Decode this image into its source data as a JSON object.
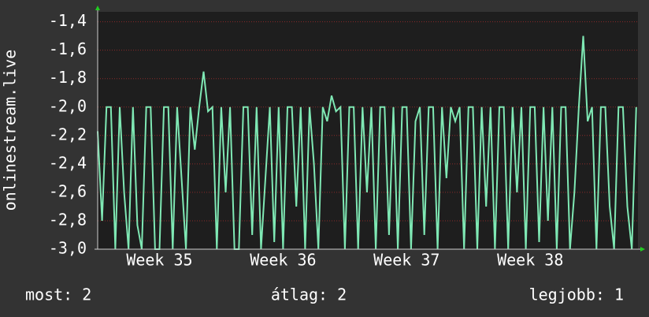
{
  "chart_data": {
    "type": "line",
    "y_label": "onlinestream.live",
    "x": [
      0,
      0.25,
      0.5,
      0.75,
      1,
      1.25,
      1.5,
      1.75,
      2,
      2.25,
      2.5,
      2.75,
      3,
      3.25,
      3.5,
      3.75,
      4,
      4.25,
      4.5,
      4.75,
      5,
      5.25,
      5.5,
      5.75,
      6,
      6.25,
      6.5,
      6.75,
      7,
      7.25,
      7.5,
      7.75,
      8,
      8.25,
      8.5,
      8.75,
      9,
      9.25,
      9.5,
      9.75,
      10,
      10.25,
      10.5,
      10.75,
      11,
      11.25,
      11.5,
      11.75,
      12,
      12.25,
      12.5,
      12.75,
      13,
      13.25,
      13.5,
      13.75,
      14,
      14.25,
      14.5,
      14.75,
      15,
      15.25,
      15.5,
      15.75,
      16,
      16.25,
      16.5,
      16.75,
      17,
      17.25,
      17.5,
      17.75,
      18,
      18.25,
      18.5,
      18.75,
      19,
      19.25,
      19.5,
      19.75,
      20,
      20.25,
      20.5,
      20.75,
      21,
      21.25,
      21.5,
      21.75,
      22,
      22.25,
      22.5,
      22.75,
      23,
      23.25,
      23.5,
      23.75,
      24,
      24.25,
      24.5,
      24.75,
      25,
      25.25,
      25.5,
      25.75,
      26,
      26.25,
      26.5,
      26.75,
      27,
      27.25,
      27.5,
      27.75,
      28,
      28.25,
      28.5,
      28.75,
      29,
      29.25,
      29.5,
      29.75,
      30,
      30.25,
      30.5
    ],
    "series": [
      {
        "color": "#7fe8b4",
        "values": [
          -2.17,
          -2.8,
          -2.0,
          -2.0,
          -3.0,
          -2.0,
          -2.6,
          -3.0,
          -2.0,
          -2.83,
          -3.0,
          -2.0,
          -2.0,
          -3.0,
          -3.0,
          -2.0,
          -2.0,
          -3.0,
          -2.0,
          -2.5,
          -3.0,
          -2.0,
          -2.3,
          -2.0,
          -1.75,
          -2.03,
          -2.0,
          -3.0,
          -2.0,
          -2.6,
          -2.0,
          -3.0,
          -3.0,
          -2.0,
          -2.0,
          -2.9,
          -2.0,
          -3.0,
          -2.5,
          -2.0,
          -2.95,
          -2.0,
          -3.0,
          -2.0,
          -2.0,
          -2.7,
          -2.0,
          -3.0,
          -2.0,
          -2.4,
          -3.0,
          -2.0,
          -2.1,
          -1.92,
          -2.03,
          -2.0,
          -3.0,
          -2.0,
          -2.0,
          -3.0,
          -2.0,
          -2.6,
          -2.0,
          -3.0,
          -2.0,
          -2.0,
          -2.9,
          -2.0,
          -3.0,
          -2.0,
          -2.0,
          -3.0,
          -2.1,
          -2.0,
          -2.9,
          -2.0,
          -2.0,
          -3.0,
          -2.0,
          -2.5,
          -2.0,
          -2.1,
          -2.0,
          -3.0,
          -2.0,
          -2.0,
          -3.0,
          -2.0,
          -2.7,
          -2.0,
          -3.0,
          -2.0,
          -2.0,
          -3.0,
          -2.0,
          -2.6,
          -2.0,
          -3.0,
          -2.0,
          -2.0,
          -2.95,
          -2.0,
          -2.8,
          -2.0,
          -3.0,
          -2.0,
          -2.0,
          -3.0,
          -2.6,
          -2.0,
          -1.5,
          -2.1,
          -2.0,
          -3.0,
          -2.0,
          -2.0,
          -2.7,
          -3.0,
          -2.0,
          -2.0,
          -2.7,
          -3.0,
          -2.0
        ]
      }
    ],
    "xlim": [
      0,
      30.6
    ],
    "xticks": [
      {
        "value": 3.5,
        "label": "Week 35"
      },
      {
        "value": 10.5,
        "label": "Week 36"
      },
      {
        "value": 17.5,
        "label": "Week 37"
      },
      {
        "value": 24.5,
        "label": "Week 38"
      }
    ],
    "ylim": [
      -3.0,
      -1.33
    ],
    "yticks": [
      {
        "value": -3.0,
        "label": "-3,0"
      },
      {
        "value": -2.8,
        "label": "-2,8"
      },
      {
        "value": -2.6,
        "label": "-2,6"
      },
      {
        "value": -2.4,
        "label": "-2,4"
      },
      {
        "value": -2.2,
        "label": "-2,2"
      },
      {
        "value": -2.0,
        "label": "-2,0"
      },
      {
        "value": -1.8,
        "label": "-1,8"
      },
      {
        "value": -1.6,
        "label": "-1,6"
      },
      {
        "value": -1.4,
        "label": "-1,4"
      }
    ],
    "grid": true,
    "stats": [
      "most: 2",
      "átlag: 2",
      "legjobb: 1"
    ]
  }
}
